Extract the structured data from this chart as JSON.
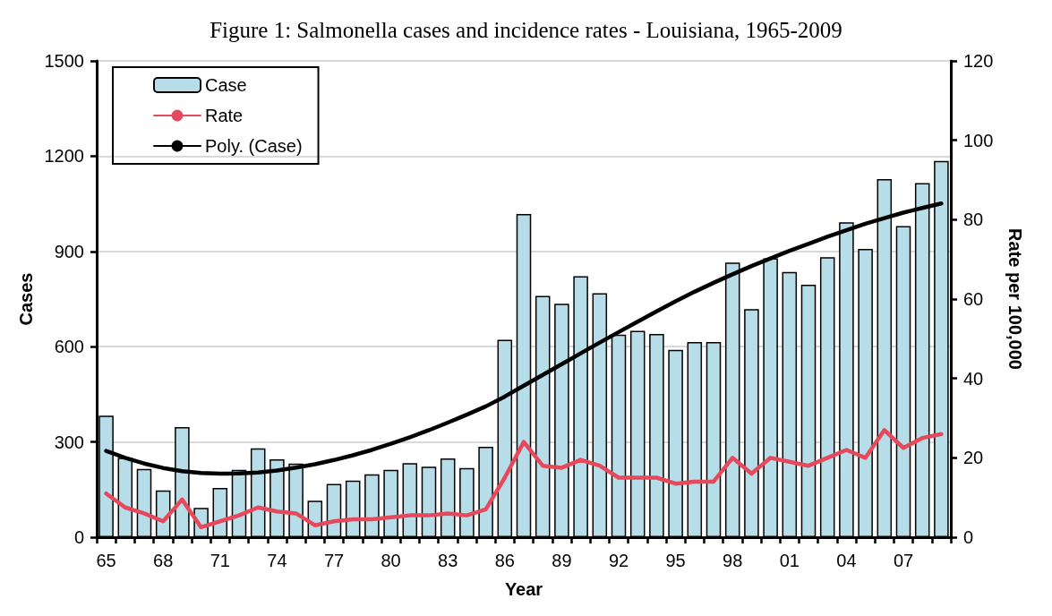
{
  "chart_data": {
    "type": "bar",
    "title": "Figure 1: Salmonella cases and incidence rates - Louisiana, 1965-2009",
    "xlabel": "Year",
    "ylabel": "Cases",
    "y2label": "Rate per 100,000",
    "categories": [
      "65",
      null,
      null,
      "68",
      null,
      null,
      "71",
      null,
      null,
      "74",
      null,
      null,
      "77",
      null,
      null,
      "80",
      null,
      null,
      "83",
      null,
      null,
      "86",
      null,
      null,
      "89",
      null,
      null,
      "92",
      null,
      null,
      "95",
      null,
      null,
      "98",
      null,
      null,
      "01",
      null,
      null,
      "04",
      null,
      null,
      "07",
      null,
      null
    ],
    "series": [
      {
        "name": "Case",
        "color": "#b7dde8",
        "values": [
          383,
          250,
          215,
          147,
          347,
          92,
          155,
          212,
          280,
          245,
          232,
          115,
          168,
          178,
          198,
          212,
          233,
          222,
          248,
          218,
          285,
          622,
          1018,
          760,
          735,
          822,
          768,
          638,
          650,
          640,
          590,
          615,
          615,
          865,
          718,
          878,
          835,
          795,
          882,
          992,
          908,
          1128,
          980,
          1115,
          1185
        ]
      },
      {
        "name": "Rate",
        "type": "line",
        "axis": "y2",
        "color": "#e5495b",
        "values": [
          11,
          7.5,
          6,
          4,
          9.5,
          2.5,
          4,
          5.5,
          7.5,
          6.5,
          6,
          3,
          4,
          4.5,
          4.5,
          5,
          5.5,
          5.5,
          6,
          5.5,
          7,
          15,
          24,
          18,
          17.5,
          19.5,
          18,
          15,
          15,
          15,
          13.5,
          14,
          14,
          20,
          16,
          20,
          19,
          18,
          20,
          22,
          20,
          27,
          22.5,
          25,
          26
        ]
      },
      {
        "name": "Poly. (Case)",
        "type": "line",
        "color": "#000000",
        "values": [
          272,
          250,
          232,
          218,
          208,
          202,
          200,
          201,
          204,
          210,
          219,
          230,
          243,
          258,
          275,
          294,
          315,
          337,
          361,
          386,
          412,
          443,
          477,
          511,
          545,
          579,
          613,
          646,
          679,
          711,
          743,
          773,
          801,
          828,
          854,
          878,
          902,
          924,
          946,
          967,
          987,
          1005,
          1022,
          1037,
          1051
        ]
      }
    ],
    "ylim": [
      0,
      1500
    ],
    "yticks": [
      0,
      300,
      600,
      900,
      1200,
      1500
    ],
    "y2lim": [
      0,
      120
    ],
    "y2ticks": [
      0,
      20,
      40,
      60,
      80,
      100,
      120
    ],
    "grid": "y",
    "legend": "top left"
  }
}
